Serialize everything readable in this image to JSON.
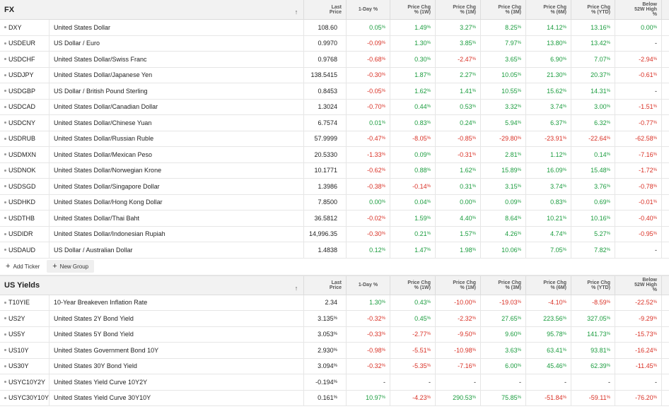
{
  "fx": {
    "title": "FX",
    "columns": {
      "sort_icon": "↑",
      "last_price": [
        "Last",
        "Price"
      ],
      "one_day": [
        "1-Day %"
      ],
      "chg_1w": [
        "Price Chg",
        "% (1W)"
      ],
      "chg_1m": [
        "Price Chg",
        "% (1M)"
      ],
      "chg_3m": [
        "Price Chg",
        "% (3M)"
      ],
      "chg_6m": [
        "Price Chg",
        "% (6M)"
      ],
      "chg_ytd": [
        "Price Chg",
        "% (YTD)"
      ],
      "below_52w": [
        "Below",
        "52W High",
        "%"
      ]
    },
    "rows": [
      {
        "ticker": "DXY",
        "name": "United States Dollar",
        "price": "108.60",
        "d1": "0.05",
        "w1": "1.49",
        "m1": "3.27",
        "m3": "8.25",
        "m6": "14.12",
        "ytd": "13.16",
        "h52": "0.00"
      },
      {
        "ticker": "USDEUR",
        "name": "US Dollar / Euro",
        "price": "0.9970",
        "d1": "-0.09",
        "w1": "1.30",
        "m1": "3.85",
        "m3": "7.97",
        "m6": "13.80",
        "ytd": "13.42",
        "h52": "-"
      },
      {
        "ticker": "USDCHF",
        "name": "United States Dollar/Swiss Franc",
        "price": "0.9768",
        "d1": "-0.68",
        "w1": "0.30",
        "m1": "-2.47",
        "m3": "3.65",
        "m6": "6.90",
        "ytd": "7.07",
        "h52": "-2.94"
      },
      {
        "ticker": "USDJPY",
        "name": "United States Dollar/Japanese Yen",
        "price": "138.5415",
        "d1": "-0.30",
        "w1": "1.87",
        "m1": "2.27",
        "m3": "10.05",
        "m6": "21.30",
        "ytd": "20.37",
        "h52": "-0.61"
      },
      {
        "ticker": "USDGBP",
        "name": "US Dollar / British Pound Sterling",
        "price": "0.8453",
        "d1": "-0.05",
        "w1": "1.62",
        "m1": "1.41",
        "m3": "10.55",
        "m6": "15.62",
        "ytd": "14.31",
        "h52": "-"
      },
      {
        "ticker": "USDCAD",
        "name": "United States Dollar/Canadian Dollar",
        "price": "1.3024",
        "d1": "-0.70",
        "w1": "0.44",
        "m1": "0.53",
        "m3": "3.32",
        "m6": "3.74",
        "ytd": "3.00",
        "h52": "-1.51"
      },
      {
        "ticker": "USDCNY",
        "name": "United States Dollar/Chinese Yuan",
        "price": "6.7574",
        "d1": "0.01",
        "w1": "0.83",
        "m1": "0.24",
        "m3": "5.94",
        "m6": "6.37",
        "ytd": "6.32",
        "h52": "-0.77"
      },
      {
        "ticker": "USDRUB",
        "name": "United States Dollar/Russian Ruble",
        "price": "57.9999",
        "d1": "-0.47",
        "w1": "-8.05",
        "m1": "-0.85",
        "m3": "-29.80",
        "m6": "-23.91",
        "ytd": "-22.64",
        "h52": "-62.58"
      },
      {
        "ticker": "USDMXN",
        "name": "United States Dollar/Mexican Peso",
        "price": "20.5330",
        "d1": "-1.33",
        "w1": "0.09",
        "m1": "-0.31",
        "m3": "2.81",
        "m6": "1.12",
        "ytd": "0.14",
        "h52": "-7.16"
      },
      {
        "ticker": "USDNOK",
        "name": "United States Dollar/Norwegian Krone",
        "price": "10.1771",
        "d1": "-0.62",
        "w1": "0.88",
        "m1": "1.62",
        "m3": "15.89",
        "m6": "16.09",
        "ytd": "15.48",
        "h52": "-1.72"
      },
      {
        "ticker": "USDSGD",
        "name": "United States Dollar/Singapore Dollar",
        "price": "1.3986",
        "d1": "-0.38",
        "w1": "-0.14",
        "m1": "0.31",
        "m3": "3.15",
        "m6": "3.74",
        "ytd": "3.76",
        "h52": "-0.78"
      },
      {
        "ticker": "USDHKD",
        "name": "United States Dollar/Hong Kong Dollar",
        "price": "7.8500",
        "d1": "0.00",
        "w1": "0.04",
        "m1": "0.00",
        "m3": "0.09",
        "m6": "0.83",
        "ytd": "0.69",
        "h52": "-0.01"
      },
      {
        "ticker": "USDTHB",
        "name": "United States Dollar/Thai Baht",
        "price": "36.5812",
        "d1": "-0.02",
        "w1": "1.59",
        "m1": "4.40",
        "m3": "8.64",
        "m6": "10.21",
        "ytd": "10.16",
        "h52": "-0.40"
      },
      {
        "ticker": "USDIDR",
        "name": "United States Dollar/Indonesian Rupiah",
        "price": "14,996.35",
        "d1": "-0.30",
        "w1": "0.21",
        "m1": "1.57",
        "m3": "4.26",
        "m6": "4.74",
        "ytd": "5.27",
        "h52": "-0.95"
      },
      {
        "ticker": "USDAUD",
        "name": "US Dollar / Australian Dollar",
        "price": "1.4838",
        "d1": "0.12",
        "w1": "1.47",
        "m1": "1.98",
        "m3": "10.06",
        "m6": "7.05",
        "ytd": "7.82",
        "h52": "-"
      }
    ],
    "add_ticker_label": "Add Ticker",
    "new_group_label": "New Group"
  },
  "yields": {
    "title": "US Yields",
    "columns": {
      "sort_icon": "↑",
      "last_price": [
        "Last",
        "Price"
      ],
      "one_day": [
        "1-Day %"
      ],
      "chg_1w": [
        "Price Chg",
        "% (1W)"
      ],
      "chg_1m": [
        "Price Chg",
        "% (1M)"
      ],
      "chg_3m": [
        "Price Chg",
        "% (3M)"
      ],
      "chg_6m": [
        "Price Chg",
        "% (6M)"
      ],
      "chg_ytd": [
        "Price Chg",
        "% (YTD)"
      ],
      "below_52w": [
        "Below",
        "52W High",
        "%"
      ]
    },
    "rows": [
      {
        "ticker": "T10YIE",
        "name": "10-Year Breakeven Inflation Rate",
        "price": "2.34",
        "price_pct": false,
        "d1": "1.30",
        "w1": "0.43",
        "m1": "-10.00",
        "m3": "-19.03",
        "m6": "-4.10",
        "ytd": "-8.59",
        "h52": "-22.52"
      },
      {
        "ticker": "US2Y",
        "name": "United States 2Y Bond Yield",
        "price": "3.135",
        "price_pct": true,
        "d1": "-0.32",
        "w1": "0.45",
        "m1": "-2.32",
        "m3": "27.65",
        "m6": "223.56",
        "ytd": "327.05",
        "h52": "-9.29"
      },
      {
        "ticker": "US5Y",
        "name": "United States 5Y Bond Yield",
        "price": "3.053",
        "price_pct": true,
        "d1": "-0.33",
        "w1": "-2.77",
        "m1": "-9.50",
        "m3": "9.60",
        "m6": "95.78",
        "ytd": "141.73",
        "h52": "-15.73"
      },
      {
        "ticker": "US10Y",
        "name": "United States Government Bond 10Y",
        "price": "2.930",
        "price_pct": true,
        "d1": "-0.98",
        "w1": "-5.51",
        "m1": "-10.98",
        "m3": "3.63",
        "m6": "63.41",
        "ytd": "93.81",
        "h52": "-16.24"
      },
      {
        "ticker": "US30Y",
        "name": "United States 30Y Bond Yield",
        "price": "3.094",
        "price_pct": true,
        "d1": "-0.32",
        "w1": "-5.35",
        "m1": "-7.16",
        "m3": "6.00",
        "m6": "45.46",
        "ytd": "62.39",
        "h52": "-11.45"
      },
      {
        "ticker": "USYC10Y2Y",
        "name": "United States Yield Curve 10Y2Y",
        "price": "-0.194",
        "price_pct": true,
        "d1": "-",
        "w1": "-",
        "m1": "-",
        "m3": "-",
        "m6": "-",
        "ytd": "-",
        "h52": "-"
      },
      {
        "ticker": "USYC30Y10Y",
        "name": "United States Yield Curve 30Y10Y",
        "price": "0.161",
        "price_pct": true,
        "d1": "10.97",
        "w1": "-4.23",
        "m1": "290.53",
        "m3": "75.85",
        "m6": "-51.84",
        "ytd": "-59.11",
        "h52": "-76.20"
      }
    ]
  },
  "pct_suffix": "%",
  "colors": {
    "positive": "#1a9c3e",
    "negative": "#d93025",
    "neutral": "#222222"
  }
}
